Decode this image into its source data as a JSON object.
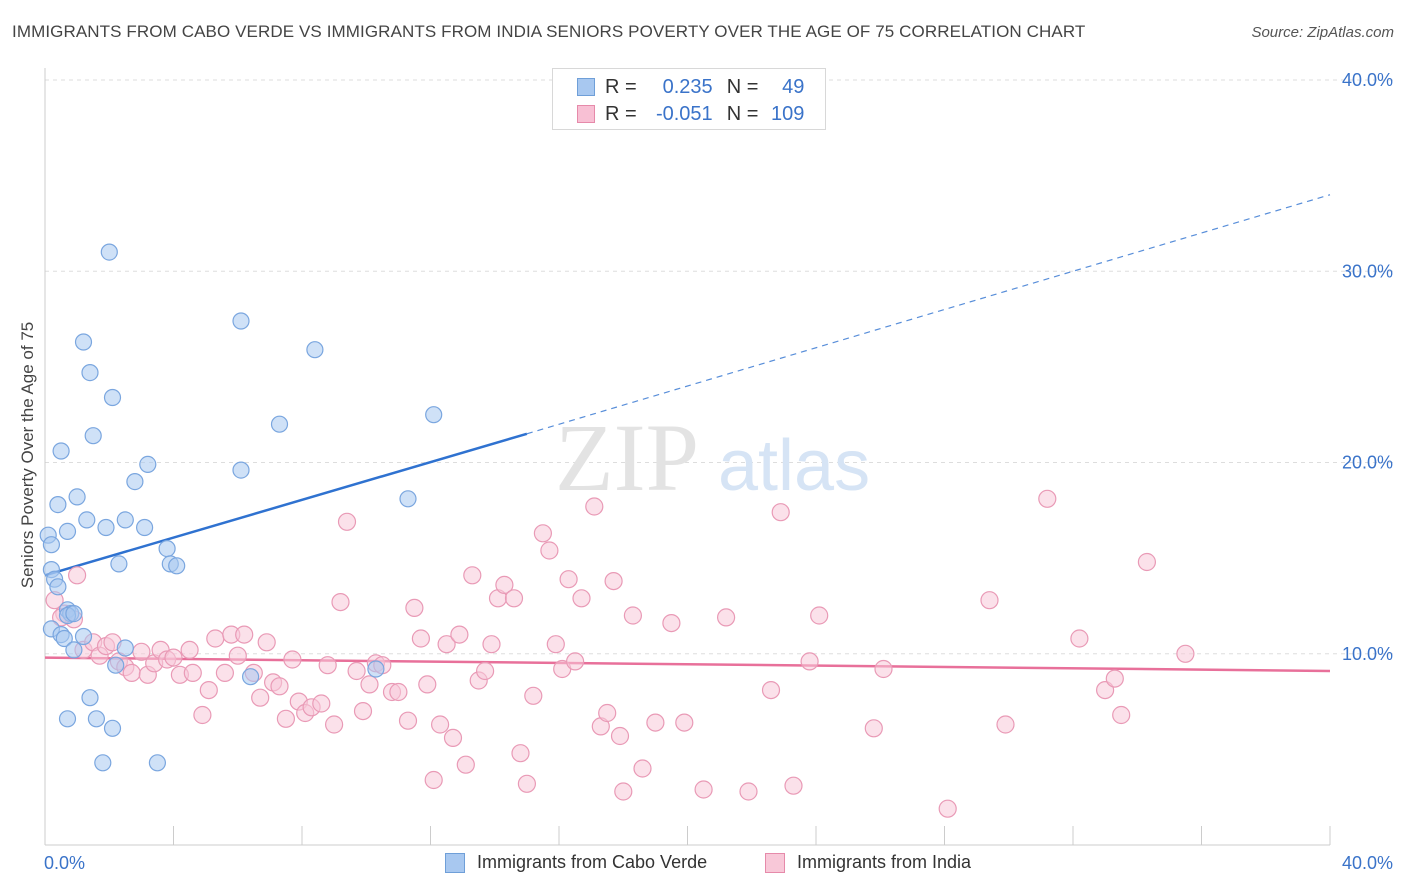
{
  "title": "IMMIGRANTS FROM CABO VERDE VS IMMIGRANTS FROM INDIA SENIORS POVERTY OVER THE AGE OF 75 CORRELATION CHART",
  "source": "Source: ZipAtlas.com",
  "watermark": {
    "zip": "ZIP",
    "atlas": "atlas"
  },
  "legend_top": [
    {
      "r_label": "R =",
      "r_value": "0.235",
      "n_label": "N =",
      "n_value": "49",
      "color": "#a8c8f0",
      "border": "#6f9fd8"
    },
    {
      "r_label": "R =",
      "r_value": "-0.051",
      "n_label": "N =",
      "n_value": "109",
      "color": "#f8c0d4",
      "border": "#e68aaa"
    }
  ],
  "colors": {
    "blue_fill": "#a8c8f0",
    "blue_stroke": "#7aa6df",
    "blue_line": "#2f72d0",
    "pink_fill": "#f8c8d8",
    "pink_stroke": "#e99ab6",
    "pink_line": "#e8709a",
    "tick_label": "#3a73c9",
    "grid": "#dddddd"
  },
  "chart_data": {
    "type": "scatter",
    "title": "IMMIGRANTS FROM CABO VERDE VS IMMIGRANTS FROM INDIA SENIORS POVERTY OVER THE AGE OF 75 CORRELATION CHART",
    "xlabel": "",
    "ylabel": "Seniors Poverty Over the Age of 75",
    "xlim": [
      0,
      40
    ],
    "ylim": [
      0,
      40
    ],
    "x_tick_labels": [
      "0.0%",
      "40.0%"
    ],
    "y_ticks": [
      10,
      20,
      30,
      40
    ],
    "y_tick_labels": [
      "10.0%",
      "20.0%",
      "30.0%",
      "40.0%"
    ],
    "grid": true,
    "legend": "bottom-center",
    "series": [
      {
        "name": "Immigrants from Cabo Verde",
        "r": 0.235,
        "n": 49,
        "trend": {
          "x0": 0,
          "y0": 14.1,
          "x1": 15.0,
          "y1": 21.5,
          "dash_to_x": 40.0,
          "dash_to_y": 34.0
        },
        "points": [
          [
            0.1,
            16.2
          ],
          [
            0.2,
            15.7
          ],
          [
            0.2,
            14.4
          ],
          [
            0.3,
            13.9
          ],
          [
            0.4,
            13.5
          ],
          [
            0.2,
            11.3
          ],
          [
            0.5,
            11.0
          ],
          [
            0.6,
            10.8
          ],
          [
            0.7,
            12.3
          ],
          [
            0.8,
            12.1
          ],
          [
            0.7,
            12.0
          ],
          [
            0.9,
            10.2
          ],
          [
            1.2,
            10.9
          ],
          [
            0.4,
            17.8
          ],
          [
            0.7,
            16.4
          ],
          [
            1.0,
            18.2
          ],
          [
            1.3,
            17.0
          ],
          [
            0.5,
            20.6
          ],
          [
            1.5,
            21.4
          ],
          [
            1.4,
            24.7
          ],
          [
            2.1,
            23.4
          ],
          [
            1.2,
            26.3
          ],
          [
            2.0,
            31.0
          ],
          [
            1.9,
            16.6
          ],
          [
            2.3,
            14.7
          ],
          [
            2.5,
            17.0
          ],
          [
            2.8,
            19.0
          ],
          [
            3.1,
            16.6
          ],
          [
            3.2,
            19.9
          ],
          [
            3.8,
            15.5
          ],
          [
            3.9,
            14.7
          ],
          [
            4.1,
            14.6
          ],
          [
            2.2,
            9.4
          ],
          [
            1.4,
            7.7
          ],
          [
            0.7,
            6.6
          ],
          [
            1.6,
            6.6
          ],
          [
            2.1,
            6.1
          ],
          [
            1.8,
            4.3
          ],
          [
            3.5,
            4.3
          ],
          [
            6.1,
            19.6
          ],
          [
            6.1,
            27.4
          ],
          [
            7.3,
            22.0
          ],
          [
            8.4,
            25.9
          ],
          [
            6.4,
            8.8
          ],
          [
            10.3,
            9.2
          ],
          [
            11.3,
            18.1
          ],
          [
            12.1,
            22.5
          ],
          [
            0.9,
            12.1
          ],
          [
            2.5,
            10.3
          ]
        ]
      },
      {
        "name": "Immigrants from India",
        "r": -0.051,
        "n": 109,
        "trend": {
          "x0": 0,
          "y0": 9.8,
          "x1": 40.0,
          "y1": 9.1
        },
        "points": [
          [
            0.3,
            12.8
          ],
          [
            0.6,
            12.1
          ],
          [
            0.9,
            11.8
          ],
          [
            1.0,
            14.1
          ],
          [
            1.2,
            10.2
          ],
          [
            1.5,
            10.6
          ],
          [
            1.7,
            9.9
          ],
          [
            1.9,
            10.4
          ],
          [
            2.1,
            10.6
          ],
          [
            2.3,
            9.6
          ],
          [
            2.5,
            9.3
          ],
          [
            2.7,
            9.0
          ],
          [
            3.0,
            10.1
          ],
          [
            3.2,
            8.9
          ],
          [
            3.4,
            9.5
          ],
          [
            3.6,
            10.2
          ],
          [
            3.8,
            9.7
          ],
          [
            4.0,
            9.8
          ],
          [
            4.2,
            8.9
          ],
          [
            4.5,
            10.2
          ],
          [
            4.6,
            9.0
          ],
          [
            4.9,
            6.8
          ],
          [
            5.1,
            8.1
          ],
          [
            5.3,
            10.8
          ],
          [
            5.6,
            9.0
          ],
          [
            5.8,
            11.0
          ],
          [
            6.0,
            9.9
          ],
          [
            6.2,
            11.0
          ],
          [
            6.5,
            9.0
          ],
          [
            6.7,
            7.7
          ],
          [
            6.9,
            10.6
          ],
          [
            7.1,
            8.5
          ],
          [
            7.3,
            8.3
          ],
          [
            7.5,
            6.6
          ],
          [
            7.7,
            9.7
          ],
          [
            7.9,
            7.5
          ],
          [
            8.1,
            6.9
          ],
          [
            8.3,
            7.2
          ],
          [
            8.6,
            7.4
          ],
          [
            8.8,
            9.4
          ],
          [
            9.0,
            6.3
          ],
          [
            9.2,
            12.7
          ],
          [
            9.4,
            16.9
          ],
          [
            9.7,
            9.1
          ],
          [
            9.9,
            7.0
          ],
          [
            10.1,
            8.4
          ],
          [
            10.3,
            9.5
          ],
          [
            10.5,
            9.4
          ],
          [
            10.8,
            8.0
          ],
          [
            11.0,
            8.0
          ],
          [
            11.3,
            6.5
          ],
          [
            11.5,
            12.4
          ],
          [
            11.7,
            10.8
          ],
          [
            11.9,
            8.4
          ],
          [
            12.1,
            3.4
          ],
          [
            12.3,
            6.3
          ],
          [
            12.5,
            10.5
          ],
          [
            12.7,
            5.6
          ],
          [
            12.9,
            11.0
          ],
          [
            13.1,
            4.2
          ],
          [
            13.3,
            14.1
          ],
          [
            13.5,
            8.6
          ],
          [
            13.7,
            9.1
          ],
          [
            13.9,
            10.5
          ],
          [
            14.1,
            12.9
          ],
          [
            14.3,
            13.6
          ],
          [
            14.6,
            12.9
          ],
          [
            14.8,
            4.8
          ],
          [
            15.0,
            3.2
          ],
          [
            15.2,
            7.8
          ],
          [
            15.5,
            16.3
          ],
          [
            15.7,
            15.4
          ],
          [
            15.9,
            10.5
          ],
          [
            16.1,
            9.2
          ],
          [
            16.3,
            13.9
          ],
          [
            16.5,
            9.6
          ],
          [
            16.7,
            12.9
          ],
          [
            17.1,
            17.7
          ],
          [
            17.3,
            6.2
          ],
          [
            17.5,
            6.9
          ],
          [
            17.7,
            13.8
          ],
          [
            17.9,
            5.7
          ],
          [
            18.0,
            2.8
          ],
          [
            18.3,
            12.0
          ],
          [
            18.6,
            4.0
          ],
          [
            19.0,
            6.4
          ],
          [
            19.5,
            11.6
          ],
          [
            19.9,
            6.4
          ],
          [
            20.5,
            2.9
          ],
          [
            21.2,
            11.9
          ],
          [
            21.9,
            2.8
          ],
          [
            22.6,
            8.1
          ],
          [
            22.9,
            17.4
          ],
          [
            23.3,
            3.1
          ],
          [
            24.1,
            12.0
          ],
          [
            23.8,
            9.6
          ],
          [
            25.8,
            6.1
          ],
          [
            26.1,
            9.2
          ],
          [
            28.1,
            1.9
          ],
          [
            29.4,
            12.8
          ],
          [
            29.9,
            6.3
          ],
          [
            31.2,
            18.1
          ],
          [
            32.2,
            10.8
          ],
          [
            33.0,
            8.1
          ],
          [
            33.5,
            6.8
          ],
          [
            34.3,
            14.8
          ],
          [
            35.5,
            10.0
          ],
          [
            33.3,
            8.7
          ],
          [
            0.5,
            11.9
          ]
        ]
      }
    ]
  },
  "legend_bottom": [
    {
      "label": "Immigrants from Cabo Verde",
      "color": "#a8c8f0",
      "border": "#6f9fd8"
    },
    {
      "label": "Immigrants from India",
      "color": "#f8c8d8",
      "border": "#e68aaa"
    }
  ]
}
